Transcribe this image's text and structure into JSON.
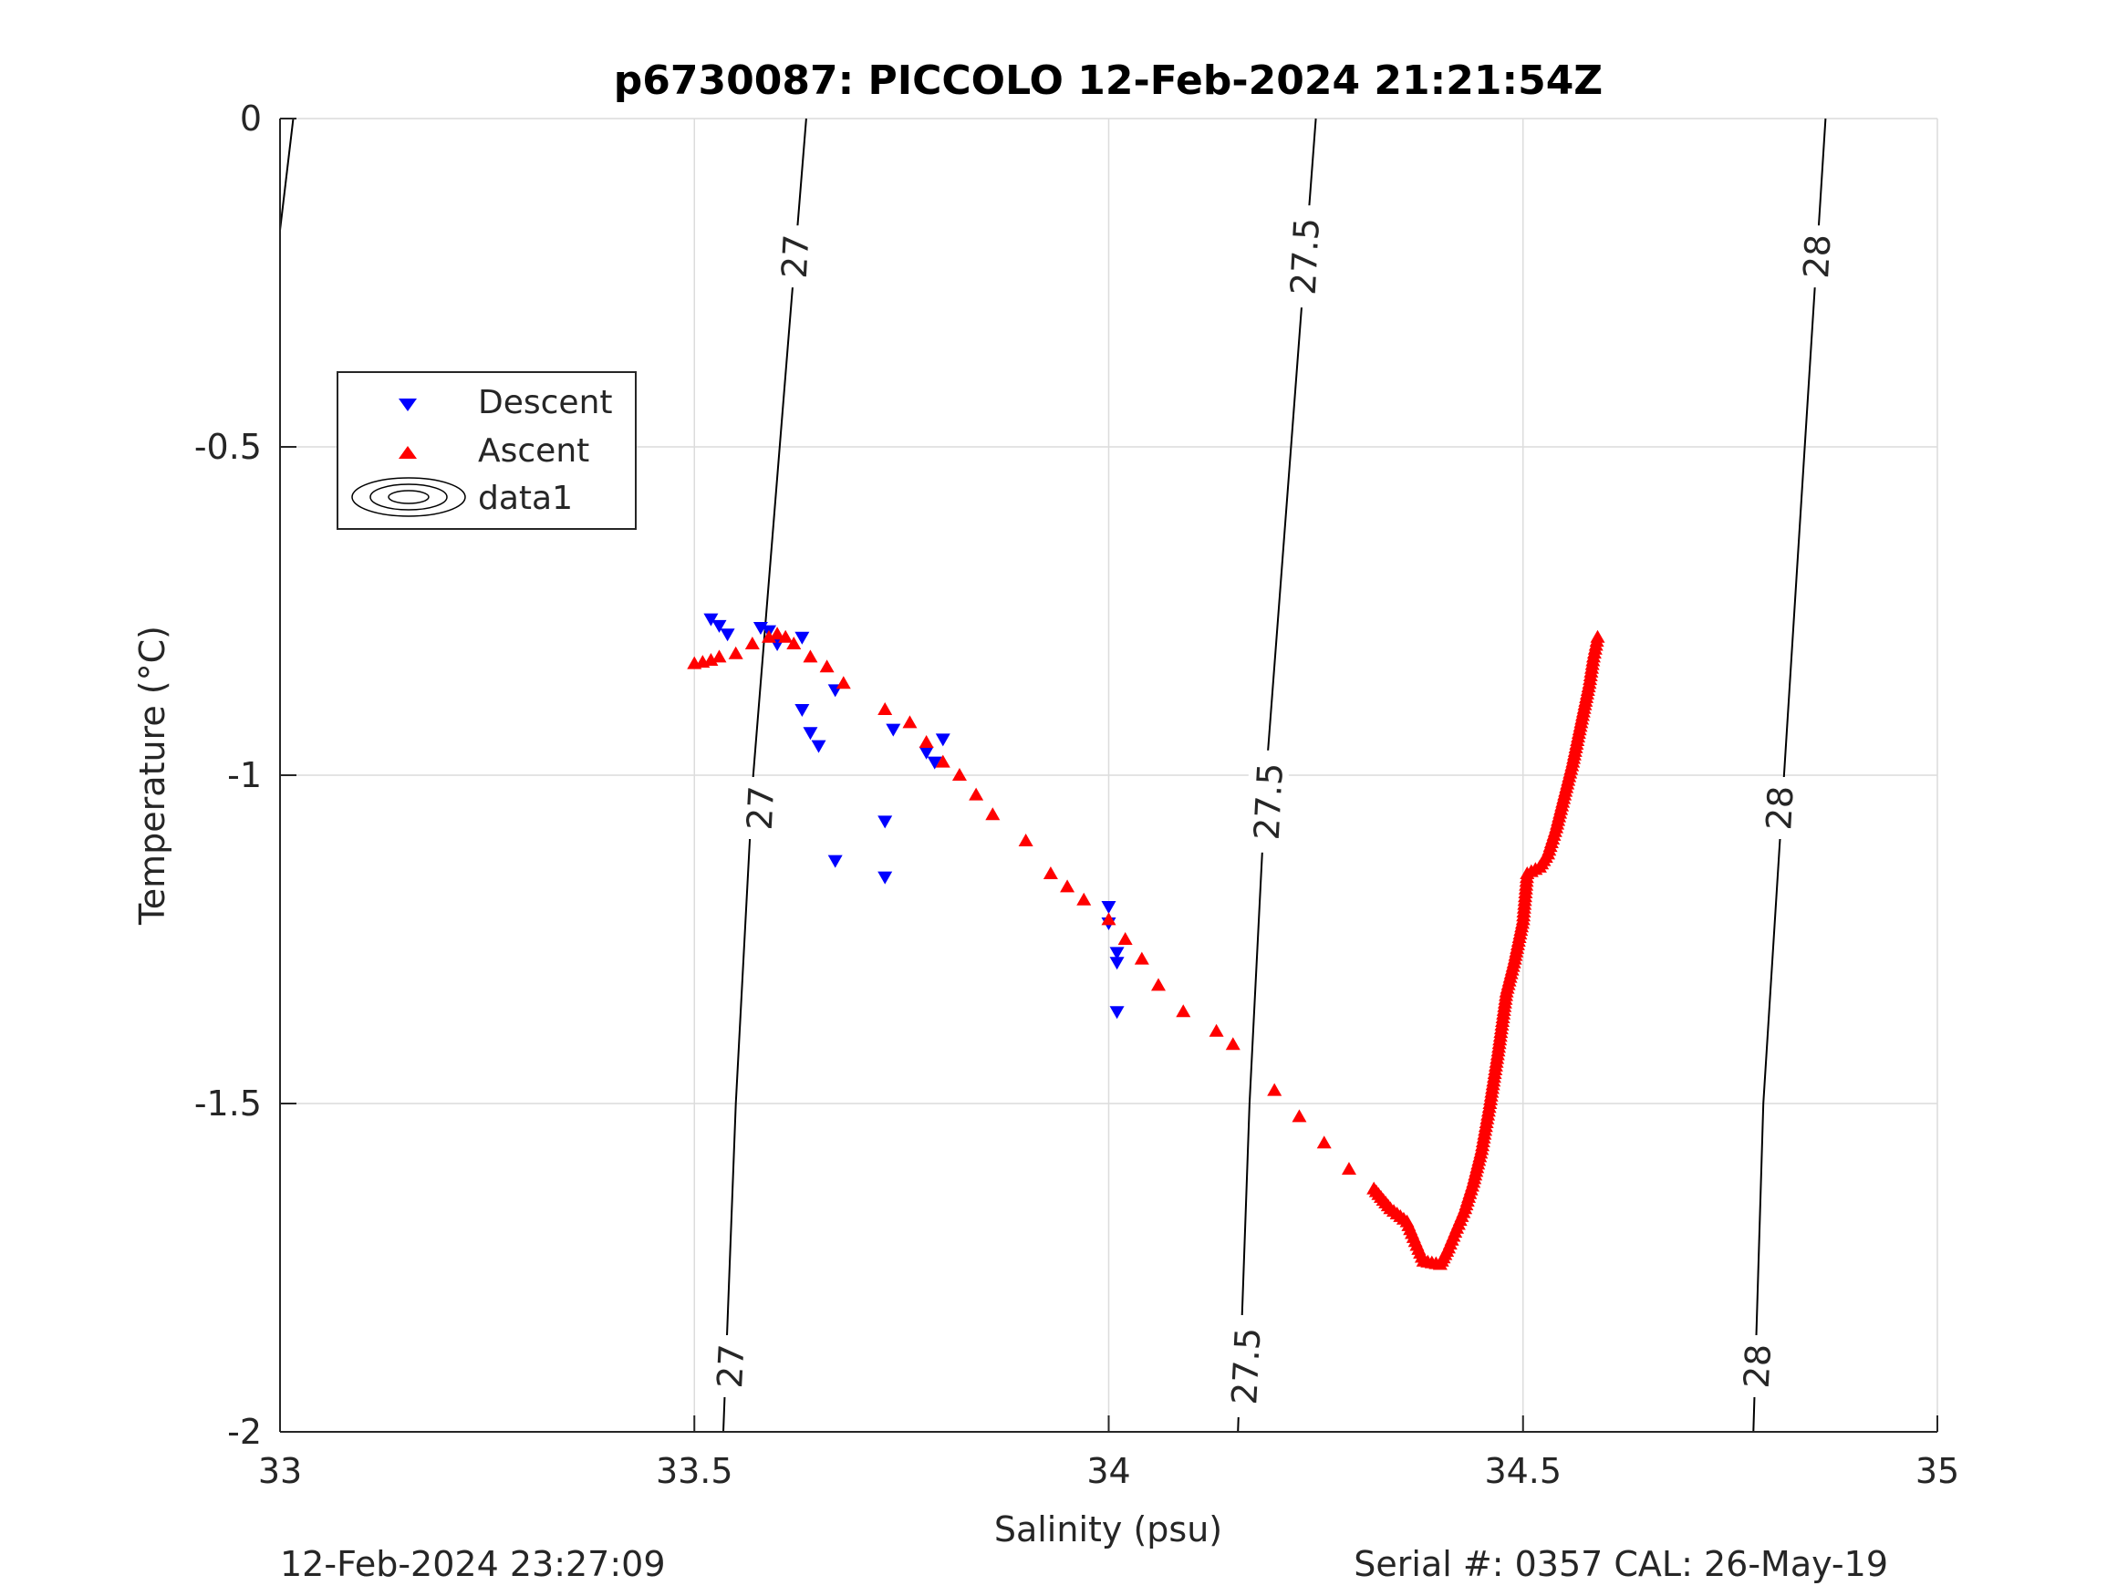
{
  "chart_data": {
    "type": "scatter",
    "title": "p6730087: PICCOLO 12-Feb-2024 21:21:54Z",
    "xlabel": "Salinity (psu)",
    "ylabel": "Temperature (°C)",
    "xlim": [
      33,
      35
    ],
    "ylim": [
      -2,
      0
    ],
    "xticks": [
      33,
      33.5,
      34,
      34.5,
      35
    ],
    "xtick_labels": [
      "33",
      "33.5",
      "34",
      "34.5",
      "35"
    ],
    "yticks": [
      0,
      -0.5,
      -1,
      -1.5,
      -2
    ],
    "ytick_labels": [
      "0",
      "-0.5",
      "-1",
      "-1.5",
      "-2"
    ],
    "grid": true,
    "legend_position": "upper-left",
    "legend": [
      "Descent",
      "Ascent",
      "data1"
    ],
    "footer_left": "12-Feb-2024 23:27:09",
    "footer_right": "Serial #: 0357  CAL: 26-May-19",
    "colors": {
      "descent": "#0000ff",
      "ascent": "#ff0000",
      "contour": "#000000",
      "grid": "#dcdcdc"
    },
    "contours": [
      {
        "level_label": "27",
        "points": [
          [
            33.635,
            0
          ],
          [
            33.603,
            -0.5
          ],
          [
            33.571,
            -1.0
          ],
          [
            33.55,
            -1.5
          ],
          [
            33.535,
            -2.0
          ]
        ],
        "label_positions": [
          [
            33.622,
            -0.21
          ],
          [
            33.58,
            -1.05
          ],
          [
            33.544,
            -1.9
          ]
        ]
      },
      {
        "level_label": "27.5",
        "points": [
          [
            34.25,
            0
          ],
          [
            34.22,
            -0.5
          ],
          [
            34.19,
            -1.0
          ],
          [
            34.17,
            -1.5
          ],
          [
            34.156,
            -2.0
          ]
        ],
        "label_positions": [
          [
            34.237,
            -0.21
          ],
          [
            34.193,
            -1.04
          ],
          [
            34.166,
            -1.9
          ]
        ]
      },
      {
        "level_label": "28",
        "points": [
          [
            34.865,
            0
          ],
          [
            34.84,
            -0.5
          ],
          [
            34.815,
            -1.0
          ],
          [
            34.79,
            -1.5
          ],
          [
            34.778,
            -2.0
          ]
        ],
        "label_positions": [
          [
            34.855,
            -0.21
          ],
          [
            34.81,
            -1.05
          ],
          [
            34.783,
            -1.9
          ]
        ]
      },
      {
        "level_label": "",
        "points": [
          [
            33.016,
            0
          ],
          [
            33.0,
            -0.17
          ]
        ],
        "label_positions": []
      }
    ],
    "series": [
      {
        "name": "Descent",
        "marker": "triangle-down",
        "points": [
          [
            33.52,
            -0.762
          ],
          [
            33.53,
            -0.772
          ],
          [
            33.54,
            -0.785
          ],
          [
            33.58,
            -0.775
          ],
          [
            33.59,
            -0.78
          ],
          [
            33.6,
            -0.8
          ],
          [
            33.63,
            -0.79
          ],
          [
            33.67,
            -0.87
          ],
          [
            33.63,
            -0.9
          ],
          [
            33.64,
            -0.935
          ],
          [
            33.65,
            -0.955
          ],
          [
            33.74,
            -0.93
          ],
          [
            33.78,
            -0.965
          ],
          [
            33.79,
            -0.98
          ],
          [
            33.8,
            -0.945
          ],
          [
            33.73,
            -1.07
          ],
          [
            33.67,
            -1.13
          ],
          [
            33.73,
            -1.155
          ],
          [
            34.0,
            -1.2
          ],
          [
            34.0,
            -1.225
          ],
          [
            34.01,
            -1.27
          ],
          [
            34.01,
            -1.285
          ],
          [
            34.01,
            -1.36
          ]
        ]
      },
      {
        "name": "Ascent",
        "points": [
          [
            33.5,
            -0.83
          ],
          [
            33.51,
            -0.828
          ],
          [
            33.52,
            -0.825
          ],
          [
            33.53,
            -0.82
          ],
          [
            33.55,
            -0.815
          ],
          [
            33.57,
            -0.8
          ],
          [
            33.59,
            -0.79
          ],
          [
            33.6,
            -0.785
          ],
          [
            33.61,
            -0.79
          ],
          [
            33.62,
            -0.8
          ],
          [
            33.64,
            -0.82
          ],
          [
            33.66,
            -0.835
          ],
          [
            33.68,
            -0.86
          ],
          [
            33.73,
            -0.9
          ],
          [
            33.76,
            -0.92
          ],
          [
            33.78,
            -0.95
          ],
          [
            33.8,
            -0.98
          ],
          [
            33.82,
            -1.0
          ],
          [
            33.84,
            -1.03
          ],
          [
            33.86,
            -1.06
          ],
          [
            33.9,
            -1.1
          ],
          [
            33.93,
            -1.15
          ],
          [
            33.95,
            -1.17
          ],
          [
            33.97,
            -1.19
          ],
          [
            34.0,
            -1.22
          ],
          [
            34.02,
            -1.25
          ],
          [
            34.04,
            -1.28
          ],
          [
            34.06,
            -1.32
          ],
          [
            34.09,
            -1.36
          ],
          [
            34.13,
            -1.39
          ],
          [
            34.15,
            -1.41
          ],
          [
            34.2,
            -1.48
          ],
          [
            34.23,
            -1.52
          ],
          [
            34.26,
            -1.56
          ],
          [
            34.29,
            -1.6
          ],
          [
            34.32,
            -1.63
          ],
          [
            34.34,
            -1.66
          ],
          [
            34.36,
            -1.68
          ],
          [
            34.37,
            -1.71
          ],
          [
            34.38,
            -1.74
          ],
          [
            34.4,
            -1.745
          ],
          [
            34.41,
            -1.72
          ],
          [
            34.42,
            -1.69
          ],
          [
            34.43,
            -1.66
          ],
          [
            34.44,
            -1.62
          ],
          [
            34.45,
            -1.57
          ],
          [
            34.46,
            -1.5
          ],
          [
            34.47,
            -1.42
          ],
          [
            34.48,
            -1.33
          ],
          [
            34.49,
            -1.28
          ],
          [
            34.5,
            -1.22
          ],
          [
            34.505,
            -1.15
          ],
          [
            34.52,
            -1.14
          ],
          [
            34.53,
            -1.12
          ],
          [
            34.54,
            -1.08
          ],
          [
            34.55,
            -1.03
          ],
          [
            34.56,
            -0.98
          ],
          [
            34.57,
            -0.92
          ],
          [
            34.58,
            -0.86
          ],
          [
            34.585,
            -0.82
          ],
          [
            34.59,
            -0.79
          ]
        ]
      }
    ]
  }
}
